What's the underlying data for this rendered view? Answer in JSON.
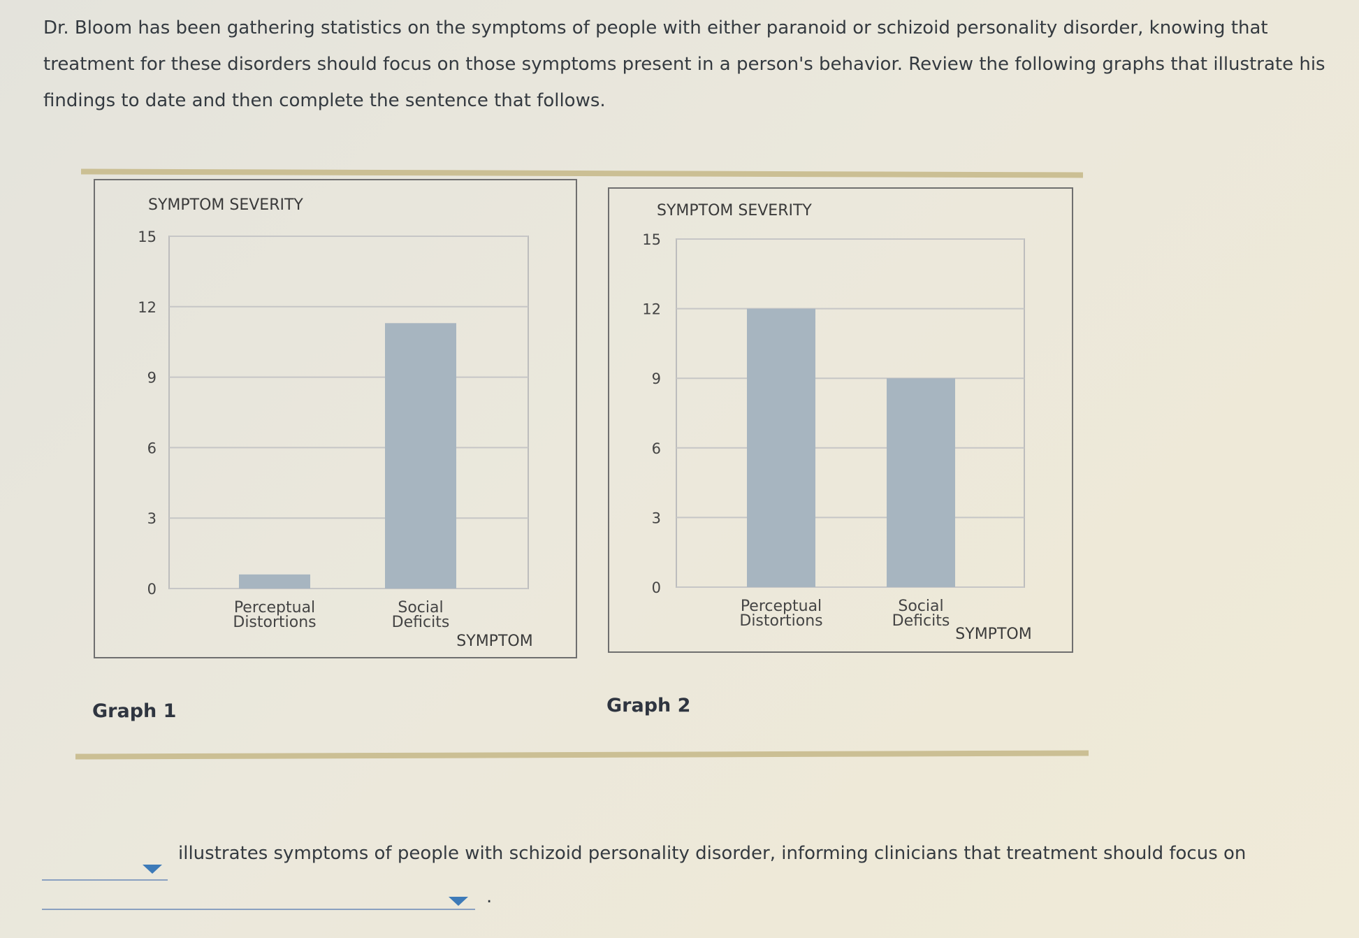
{
  "intro_text": "Dr. Bloom has been gathering statistics on the symptoms of people with either paranoid or schizoid personality disorder, knowing that treatment for these disorders should focus on those symptoms present in a person's behavior. Review the following graphs that illustrate his findings to date and then complete the sentence that follows.",
  "graphs": [
    {
      "label": "Graph 1"
    },
    {
      "label": "Graph 2"
    }
  ],
  "chart_data": [
    {
      "type": "bar",
      "title": "SYMPTOM SEVERITY",
      "xlabel": "SYMPTOM",
      "categories": [
        "Perceptual Distortions",
        "Social Deficits"
      ],
      "values": [
        0.6,
        11.3
      ],
      "ylim": [
        0,
        15
      ],
      "yticks": [
        0,
        3,
        6,
        9,
        12,
        15
      ],
      "grid": true,
      "bar_color": "#a7b5c0"
    },
    {
      "type": "bar",
      "title": "SYMPTOM SEVERITY",
      "xlabel": "SYMPTOM",
      "categories": [
        "Perceptual Distortions",
        "Social Deficits"
      ],
      "values": [
        12,
        9
      ],
      "ylim": [
        0,
        15
      ],
      "yticks": [
        0,
        3,
        6,
        9,
        12,
        15
      ],
      "grid": true,
      "bar_color": "#a7b5c0"
    }
  ],
  "question": {
    "sentence": "illustrates symptoms of people with schizoid personality disorder, informing clinicians that treatment should focus on",
    "dropdown1_value": "",
    "dropdown2_value": "",
    "end_punct": "."
  },
  "colors": {
    "rule": "#cbbf94",
    "dropdown_caret": "#3d7ab8"
  }
}
